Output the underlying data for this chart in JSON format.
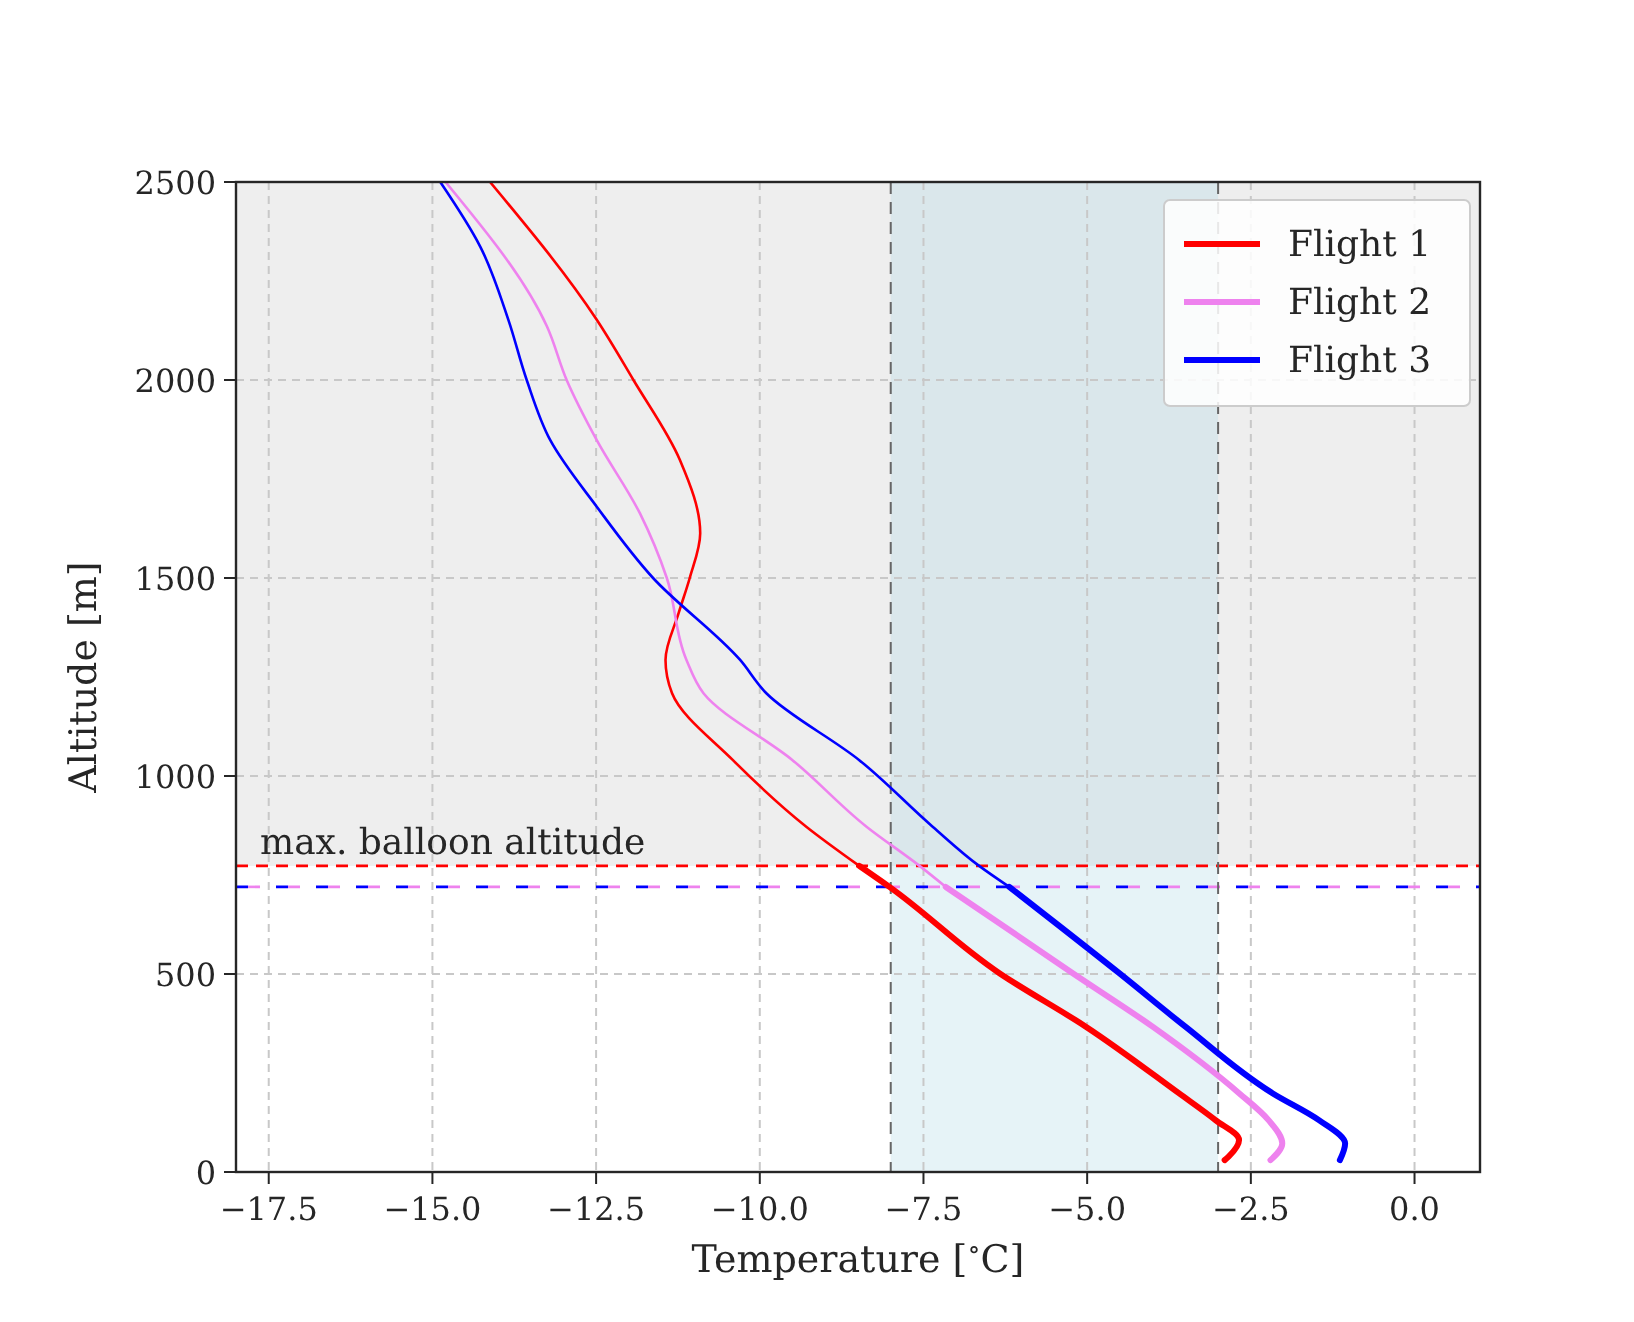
{
  "chart_data": {
    "type": "line",
    "xlabel": "Temperature [$^{∘}$C]",
    "ylabel": "Altitude [m]",
    "xlim": [
      -18,
      1
    ],
    "ylim": [
      0,
      2500
    ],
    "xticks": [
      {
        "value": -17.5,
        "label": "−17.5"
      },
      {
        "value": -15,
        "label": "−15.0"
      },
      {
        "value": -12.5,
        "label": "−12.5"
      },
      {
        "value": -10,
        "label": "−10.0"
      },
      {
        "value": -7.5,
        "label": "−7.5"
      },
      {
        "value": -5,
        "label": "−5.0"
      },
      {
        "value": -2.5,
        "label": "−2.5"
      },
      {
        "value": 0,
        "label": "0.0"
      }
    ],
    "yticks": [
      0,
      500,
      1000,
      1500,
      2000,
      2500
    ],
    "grid": true,
    "legend": "top right",
    "line_style": "solid",
    "bands": [
      {
        "axis": "y",
        "from": 773,
        "to": 2500,
        "color": "#eeeeee"
      },
      {
        "axis": "x",
        "from": -8,
        "to": -3,
        "color": "#add8e6"
      }
    ],
    "ref_lines": [
      {
        "axis": "y",
        "value": 773,
        "label": "max. balloon altitude",
        "color": "#ff0000",
        "line_style": "dashed"
      },
      {
        "axis": "y",
        "value": 720,
        "color": "#0000ff",
        "line_style": "dashed"
      },
      {
        "axis": "y",
        "value": 720,
        "color": "#ee82ee",
        "line_style": "dashed"
      },
      {
        "axis": "x",
        "value": -8,
        "color": "#666666",
        "line_style": "dashed"
      },
      {
        "axis": "x",
        "value": -3,
        "color": "#666666",
        "line_style": "dashed"
      }
    ],
    "series": [
      {
        "name": "Flight 1",
        "color": "#ff0000",
        "x": [
          -8.48,
          -8.02,
          -6.34,
          -5.02,
          -3.6,
          -3.04,
          -2.68,
          -2.84,
          -2.9
        ],
        "values": [
          773,
          720,
          502,
          367,
          199,
          131,
          81,
          39,
          30
        ]
      },
      {
        "name": "Flight 2",
        "color": "#ee82ee",
        "x": [
          -7.16,
          -5.22,
          -4.0,
          -2.68,
          -2.23,
          -2.02,
          -2.2
        ],
        "values": [
          720,
          502,
          367,
          199,
          131,
          72,
          30
        ]
      },
      {
        "name": "Flight 3",
        "color": "#0000ff",
        "x": [
          -6.19,
          -4.51,
          -3.5,
          -2.17,
          -1.46,
          -1.06,
          -1.14
        ],
        "values": [
          720,
          502,
          367,
          199,
          131,
          72,
          30
        ]
      },
      {
        "color": "#ff0000",
        "x": [
          -14.12,
          -12.49,
          -11.93,
          -11.22,
          -10.91,
          -11.07,
          -11.24,
          -11.44,
          -11.34,
          -10.41,
          -9.29,
          -8.48
        ],
        "values": [
          2500,
          2152,
          2000,
          1798,
          1613,
          1500,
          1411,
          1293,
          1209,
          1040,
          872,
          773
        ]
      },
      {
        "color": "#ee82ee",
        "x": [
          -14.8,
          -13.25,
          -12.95,
          -12.49,
          -11.83,
          -11.42,
          -11.12,
          -10.86,
          -9.5,
          -8.37,
          -7.56,
          -7.16
        ],
        "values": [
          2500,
          2135,
          2000,
          1848,
          1663,
          1500,
          1293,
          1209,
          1040,
          872,
          773,
          720
        ]
      },
      {
        "color": "#0000ff",
        "x": [
          -14.88,
          -14.27,
          -13.84,
          -13.56,
          -13.2,
          -12.49,
          -11.63,
          -10.3,
          -9.9,
          -8.48,
          -7.36,
          -6.65,
          -6.19
        ],
        "values": [
          2500,
          2337,
          2152,
          2000,
          1848,
          1680,
          1500,
          1293,
          1209,
          1040,
          872,
          773,
          720
        ]
      }
    ]
  }
}
